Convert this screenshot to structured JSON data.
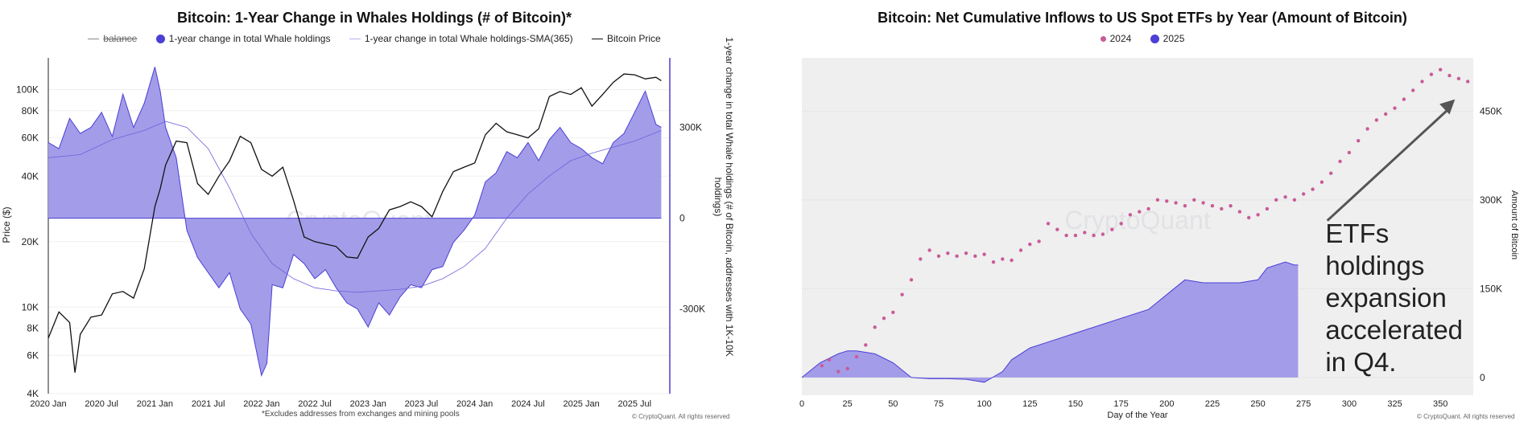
{
  "left": {
    "title": "Bitcoin: 1-Year Change in Whales Holdings (# of Bitcoin)*",
    "legend": {
      "balance": "balance",
      "change": "1-year change in total Whale holdings",
      "sma": "1-year change in total Whale holdings-SMA(365)",
      "price": "Bitcoin Price"
    },
    "left_axis_label": "Price ($)",
    "right_axis_label": "1-year change in total Whale holdings (# of Bitcoin, addresses with 1K-10K holdings)",
    "left_ticks": [
      "100K",
      "80K",
      "60K",
      "40K",
      "20K",
      "10K",
      "8K",
      "6K",
      "4K"
    ],
    "right_ticks": [
      "300K",
      "0",
      "-300K"
    ],
    "x_ticks": [
      "2020 Jan",
      "2020 Jul",
      "2021 Jan",
      "2021 Jul",
      "2022 Jan",
      "2022 Jul",
      "2023 Jan",
      "2023 Jul",
      "2024 Jan",
      "2024 Jul",
      "2025 Jan",
      "2025 Jul"
    ],
    "footnote": "*Excludes addresses from exchanges and mining pools",
    "copyright": "© CryptoQuant. All rights reserved",
    "watermark": "CryptoQuant"
  },
  "right": {
    "title": "Bitcoin: Net Cumulative Inflows to US Spot ETFs by Year (Amount of Bitcoin)",
    "legend": {
      "s2024": "2024",
      "s2025": "2025"
    },
    "right_axis_label": "Amount of Bitcoin",
    "x_axis_label": "Day of the Year",
    "x_ticks": [
      "0",
      "25",
      "50",
      "75",
      "100",
      "125",
      "150",
      "175",
      "200",
      "225",
      "250",
      "275",
      "300",
      "325",
      "350"
    ],
    "y_ticks": [
      "450K",
      "300K",
      "150K",
      "0"
    ],
    "annotation": [
      "ETFs",
      "holdings",
      "expansion",
      "accelerated",
      "in Q4."
    ],
    "copyright": "© CryptoQuant. All rights reserved",
    "watermark": "CryptoQuant"
  },
  "colors": {
    "whale_fill": "#a39ce8",
    "whale_line": "#4b3fd6",
    "price_line": "#111111",
    "sma_line": "#6d63dd",
    "etf_2024": "#c95b98",
    "etf_2025_fill": "#a39ce8",
    "plot_bg": "#efefef"
  },
  "chart_data": [
    {
      "type": "area",
      "title": "Bitcoin: 1-Year Change in Whales Holdings (# of Bitcoin)*",
      "x_range": [
        "2020 Jan",
        "2025 Oct"
      ],
      "y_price_scale": "log",
      "y_price_range": [
        4000,
        140000
      ],
      "y_change_range": [
        -580000,
        530000
      ],
      "series": [
        {
          "name": "1-year change in total Whale holdings",
          "x": [
            2020.0,
            2020.1,
            2020.2,
            2020.3,
            2020.4,
            2020.5,
            2020.6,
            2020.7,
            2020.8,
            2020.9,
            2021.0,
            2021.05,
            2021.1,
            2021.2,
            2021.3,
            2021.4,
            2021.5,
            2021.6,
            2021.7,
            2021.8,
            2021.9,
            2022.0,
            2022.05,
            2022.1,
            2022.2,
            2022.3,
            2022.4,
            2022.5,
            2022.6,
            2022.7,
            2022.8,
            2022.9,
            2023.0,
            2023.1,
            2023.2,
            2023.3,
            2023.4,
            2023.5,
            2023.6,
            2023.7,
            2023.8,
            2023.9,
            2024.0,
            2024.1,
            2024.2,
            2024.3,
            2024.4,
            2024.5,
            2024.6,
            2024.7,
            2024.8,
            2024.9,
            2025.0,
            2025.1,
            2025.2,
            2025.3,
            2025.4,
            2025.5,
            2025.6,
            2025.7,
            2025.75
          ],
          "values": [
            250000,
            230000,
            330000,
            280000,
            300000,
            350000,
            270000,
            410000,
            300000,
            380000,
            500000,
            420000,
            300000,
            200000,
            -40000,
            -130000,
            -180000,
            -230000,
            -180000,
            -300000,
            -350000,
            -520000,
            -480000,
            -220000,
            -230000,
            -120000,
            -150000,
            -200000,
            -170000,
            -230000,
            -280000,
            -300000,
            -360000,
            -280000,
            -320000,
            -260000,
            -220000,
            -230000,
            -170000,
            -160000,
            -80000,
            -40000,
            10000,
            120000,
            150000,
            220000,
            200000,
            250000,
            190000,
            260000,
            300000,
            250000,
            230000,
            200000,
            180000,
            250000,
            280000,
            350000,
            420000,
            310000,
            300000
          ]
        },
        {
          "name": "1-year change in total Whale holdings-SMA(365)",
          "x": [
            2020.0,
            2020.3,
            2020.6,
            2020.9,
            2021.1,
            2021.3,
            2021.5,
            2021.7,
            2021.9,
            2022.1,
            2022.3,
            2022.5,
            2022.7,
            2022.9,
            2023.1,
            2023.3,
            2023.5,
            2023.7,
            2023.9,
            2024.1,
            2024.3,
            2024.5,
            2024.7,
            2024.9,
            2025.1,
            2025.3,
            2025.5,
            2025.75
          ],
          "values": [
            200000,
            210000,
            260000,
            290000,
            320000,
            300000,
            230000,
            100000,
            -50000,
            -150000,
            -200000,
            -230000,
            -240000,
            -245000,
            -240000,
            -235000,
            -225000,
            -200000,
            -160000,
            -100000,
            0,
            80000,
            140000,
            190000,
            215000,
            235000,
            255000,
            290000
          ]
        },
        {
          "name": "Bitcoin Price",
          "x": [
            2020.0,
            2020.1,
            2020.2,
            2020.25,
            2020.3,
            2020.4,
            2020.5,
            2020.6,
            2020.7,
            2020.8,
            2020.9,
            2021.0,
            2021.05,
            2021.1,
            2021.2,
            2021.3,
            2021.4,
            2021.5,
            2021.6,
            2021.7,
            2021.8,
            2021.9,
            2022.0,
            2022.1,
            2022.2,
            2022.3,
            2022.4,
            2022.5,
            2022.6,
            2022.7,
            2022.8,
            2022.9,
            2023.0,
            2023.1,
            2023.2,
            2023.3,
            2023.4,
            2023.5,
            2023.6,
            2023.7,
            2023.8,
            2023.9,
            2024.0,
            2024.1,
            2024.2,
            2024.3,
            2024.4,
            2024.5,
            2024.6,
            2024.7,
            2024.8,
            2024.9,
            2025.0,
            2025.1,
            2025.2,
            2025.3,
            2025.4,
            2025.5,
            2025.6,
            2025.7,
            2025.75
          ],
          "values": [
            7200,
            9500,
            8500,
            5000,
            7500,
            9000,
            9200,
            11500,
            11800,
            11000,
            15000,
            29000,
            35000,
            45000,
            58000,
            57000,
            37000,
            33000,
            40000,
            47000,
            61000,
            57000,
            43000,
            40000,
            44000,
            31000,
            21000,
            20000,
            19500,
            19000,
            17000,
            16800,
            21000,
            23000,
            28000,
            29000,
            30500,
            29000,
            26000,
            34000,
            42000,
            44000,
            46000,
            62000,
            70000,
            64000,
            62000,
            60000,
            66000,
            93000,
            98000,
            95000,
            102000,
            84000,
            95000,
            108000,
            118000,
            117000,
            112000,
            114000,
            110000
          ]
        }
      ]
    },
    {
      "type": "scatter",
      "title": "Bitcoin: Net Cumulative Inflows to US Spot ETFs by Year (Amount of Bitcoin)",
      "xlabel": "Day of the Year",
      "ylabel": "Amount of Bitcoin",
      "xlim": [
        0,
        368
      ],
      "ylim": [
        -30000,
        540000
      ],
      "series": [
        {
          "name": "2024",
          "x": [
            11,
            15,
            20,
            25,
            30,
            35,
            40,
            45,
            50,
            55,
            60,
            65,
            70,
            75,
            80,
            85,
            90,
            95,
            100,
            105,
            110,
            115,
            120,
            125,
            130,
            135,
            140,
            145,
            150,
            155,
            160,
            165,
            170,
            175,
            180,
            185,
            190,
            195,
            200,
            205,
            210,
            215,
            220,
            225,
            230,
            235,
            240,
            245,
            250,
            255,
            260,
            265,
            270,
            275,
            280,
            285,
            290,
            295,
            300,
            305,
            310,
            315,
            320,
            325,
            330,
            335,
            340,
            345,
            350,
            355,
            360,
            365
          ],
          "values": [
            20000,
            30000,
            10000,
            15000,
            35000,
            55000,
            85000,
            100000,
            110000,
            140000,
            165000,
            200000,
            215000,
            205000,
            210000,
            205000,
            210000,
            205000,
            208000,
            195000,
            200000,
            198000,
            215000,
            225000,
            230000,
            260000,
            250000,
            240000,
            240000,
            245000,
            240000,
            242000,
            250000,
            260000,
            275000,
            280000,
            285000,
            300000,
            298000,
            295000,
            290000,
            300000,
            295000,
            290000,
            285000,
            290000,
            280000,
            270000,
            275000,
            285000,
            300000,
            305000,
            300000,
            310000,
            318000,
            330000,
            345000,
            365000,
            380000,
            400000,
            420000,
            435000,
            445000,
            455000,
            470000,
            485000,
            500000,
            512000,
            520000,
            510000,
            505000,
            500000
          ]
        },
        {
          "name": "2025",
          "x": [
            0,
            10,
            20,
            25,
            30,
            40,
            50,
            60,
            70,
            80,
            90,
            100,
            110,
            115,
            120,
            125,
            135,
            150,
            165,
            175,
            190,
            200,
            210,
            220,
            240,
            250,
            255,
            260,
            265,
            270,
            272
          ],
          "values": [
            0,
            25000,
            40000,
            45000,
            45000,
            40000,
            25000,
            0,
            -2000,
            -2000,
            -3000,
            -8000,
            10000,
            30000,
            40000,
            50000,
            60000,
            75000,
            90000,
            100000,
            115000,
            140000,
            165000,
            160000,
            160000,
            165000,
            185000,
            190000,
            195000,
            190000,
            190000
          ]
        }
      ]
    }
  ]
}
